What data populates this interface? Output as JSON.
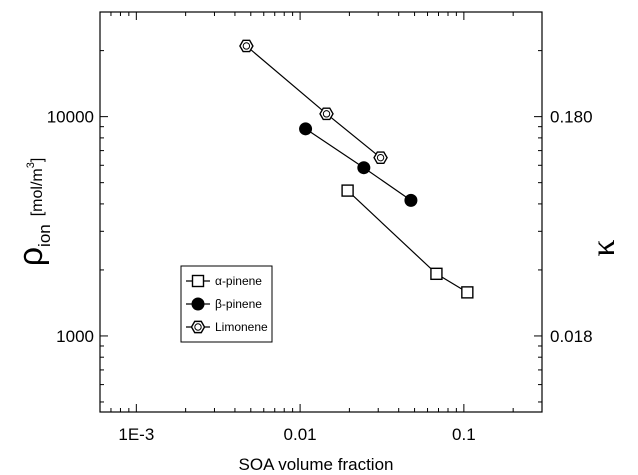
{
  "chart_data": {
    "type": "scatter",
    "xscale": "log",
    "yscale": "log",
    "xlim": [
      0.0006,
      0.3
    ],
    "ylim": [
      450,
      30000
    ],
    "xlabel": "SOA volume fraction",
    "ylabel": {
      "symbol": "ρ",
      "subscript": "ion",
      "unit_open": "[mol/m",
      "unit_sup": "3",
      "unit_close": "]"
    },
    "right_label": "κ",
    "x_ticks": [
      {
        "value": 0.001,
        "label": "1E-3"
      },
      {
        "value": 0.01,
        "label": "0.01"
      },
      {
        "value": 0.1,
        "label": "0.1"
      }
    ],
    "y_ticks": [
      {
        "value": 1000,
        "label": "1000"
      },
      {
        "value": 10000,
        "label": "10000"
      }
    ],
    "right_ticks": [
      {
        "value": 1000,
        "label": "0.018"
      },
      {
        "value": 10000,
        "label": "0.180"
      }
    ],
    "grid": false,
    "legend_position": "lower-left",
    "series": [
      {
        "name": "α-pinene",
        "marker": "open-square",
        "x": [
          0.0195,
          0.068,
          0.105
        ],
        "y": [
          4600,
          1920,
          1580
        ]
      },
      {
        "name": "β-pinene",
        "marker": "filled-circle",
        "x": [
          0.0108,
          0.0245,
          0.0475
        ],
        "y": [
          8800,
          5850,
          4150
        ]
      },
      {
        "name": "Limonene",
        "marker": "open-hexagon",
        "x": [
          0.0047,
          0.0145,
          0.031
        ],
        "y": [
          21000,
          10300,
          6500
        ]
      }
    ]
  }
}
